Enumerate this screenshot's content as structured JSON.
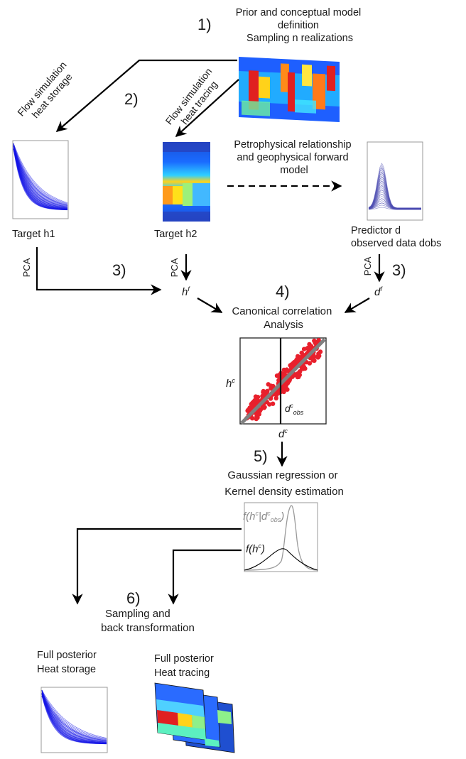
{
  "steps": {
    "s1": {
      "num": "1)",
      "title_lines": [
        "Prior and conceptual model",
        "definition",
        "Sampling n realizations"
      ]
    },
    "s2": {
      "num": "2)"
    },
    "s3a": {
      "num": "3)"
    },
    "s3b": {
      "num": "3)"
    },
    "s4": {
      "num": "4)",
      "lines": [
        "Canonical correlation",
        "Analysis"
      ]
    },
    "s5": {
      "num": "5)",
      "lines": [
        "Gaussian regression or",
        "Kernel density estimation"
      ]
    },
    "s6": {
      "num": "6)",
      "lines": [
        "Sampling and",
        "back transformation"
      ]
    }
  },
  "flow_labels": {
    "storage_lines": [
      "Flow simulation",
      "heat storage"
    ],
    "tracing_lines": [
      "Flow simulation",
      "heat tracing"
    ],
    "petro_lines": [
      "Petrophysical relationship",
      "and geophysical forward",
      "model"
    ]
  },
  "nodes": {
    "target_h1": "Target h1",
    "target_h2": "Target h2",
    "predictor_lines": [
      "Predictor d",
      "observed data dobs"
    ],
    "posterior_storage_lines": [
      "Full posterior",
      "Heat storage"
    ],
    "posterior_tracing_lines": [
      "Full posterior",
      "Heat tracing"
    ]
  },
  "pca": {
    "left": "PCA",
    "mid": "PCA",
    "right": "PCA"
  },
  "symbols": {
    "h": "h",
    "h_sup": "f",
    "d": "d",
    "d_sup": "f",
    "hc": "h",
    "hc_sup": "c",
    "dc": "d",
    "dc_sup": "c",
    "dcobs": "d",
    "dcobs_sup": "c",
    "dcobs_sub": "obs"
  },
  "kde_labels": {
    "cond": "f(h",
    "cond_sup": "c",
    "cond_mid": "|d",
    "cond_sup2": "c",
    "cond_sub": "obs",
    "cond_end": ")",
    "prior": "f(h",
    "prior_sup": "c",
    "prior_end": ")"
  },
  "colors": {
    "curves_blue": "#1414e6",
    "predictor_blue": "#4a4ab0",
    "scatter_red": "#e8202c",
    "regression_gray": "#808080",
    "kde_cond": "#9a9a9a",
    "kde_prior": "#000000"
  }
}
